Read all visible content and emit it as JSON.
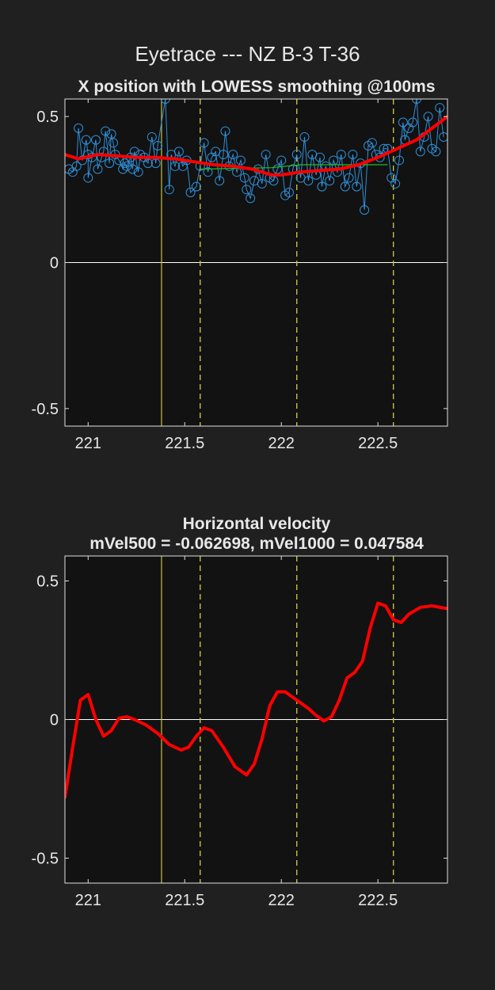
{
  "figure_title": "Eyetrace --- NZ B-3 T-36",
  "chart_data": [
    {
      "type": "line",
      "title": "X position with LOWESS smoothing @100ms",
      "xlim": [
        220.88,
        222.86
      ],
      "ylim": [
        -0.56,
        0.56
      ],
      "xticks": [
        221,
        221.5,
        222,
        222.5
      ],
      "xtick_labels": [
        "221",
        "221.5",
        "222",
        "222.5"
      ],
      "yticks": [
        -0.5,
        0,
        0.5
      ],
      "ytick_labels": [
        "-0.5",
        "0",
        "0.5"
      ],
      "grid": false,
      "zero_line": 0,
      "event_lines": {
        "solid": [
          221.38
        ],
        "dashed": [
          221.58,
          222.08,
          222.58
        ],
        "color": "#c8c040"
      },
      "series": [
        {
          "role": "raw samples",
          "color": "#2f8fd8",
          "marker": "circle",
          "points": [
            [
              220.9,
              0.32
            ],
            [
              220.92,
              0.31
            ],
            [
              220.94,
              0.33
            ],
            [
              220.95,
              0.46
            ],
            [
              220.97,
              0.35
            ],
            [
              220.99,
              0.42
            ],
            [
              221.0,
              0.37
            ],
            [
              221.0,
              0.29
            ],
            [
              221.02,
              0.36
            ],
            [
              221.04,
              0.42
            ],
            [
              221.05,
              0.32
            ],
            [
              221.07,
              0.36
            ],
            [
              221.08,
              0.38
            ],
            [
              221.09,
              0.45
            ],
            [
              221.11,
              0.34
            ],
            [
              221.12,
              0.44
            ],
            [
              221.13,
              0.41
            ],
            [
              221.14,
              0.37
            ],
            [
              221.16,
              0.35
            ],
            [
              221.18,
              0.32
            ],
            [
              221.19,
              0.34
            ],
            [
              221.2,
              0.33
            ],
            [
              221.22,
              0.36
            ],
            [
              221.23,
              0.32
            ],
            [
              221.24,
              0.38
            ],
            [
              221.26,
              0.31
            ],
            [
              221.27,
              0.37
            ],
            [
              221.29,
              0.36
            ],
            [
              221.31,
              0.34
            ],
            [
              221.33,
              0.43
            ],
            [
              221.35,
              0.34
            ],
            [
              221.36,
              0.4
            ],
            [
              221.4,
              0.56
            ],
            [
              221.42,
              0.25
            ],
            [
              221.43,
              0.37
            ],
            [
              221.45,
              0.33
            ],
            [
              221.47,
              0.38
            ],
            [
              221.49,
              0.33
            ],
            [
              221.51,
              0.35
            ],
            [
              221.53,
              0.24
            ],
            [
              221.56,
              0.26
            ],
            [
              221.58,
              0.33
            ],
            [
              221.6,
              0.41
            ],
            [
              221.62,
              0.31
            ],
            [
              221.64,
              0.36
            ],
            [
              221.66,
              0.38
            ],
            [
              221.68,
              0.28
            ],
            [
              221.7,
              0.37
            ],
            [
              221.71,
              0.45
            ],
            [
              221.73,
              0.33
            ],
            [
              221.75,
              0.37
            ],
            [
              221.77,
              0.31
            ],
            [
              221.79,
              0.35
            ],
            [
              221.81,
              0.29
            ],
            [
              221.82,
              0.25
            ],
            [
              221.84,
              0.22
            ],
            [
              221.86,
              0.28
            ],
            [
              221.88,
              0.32
            ],
            [
              221.9,
              0.27
            ],
            [
              221.92,
              0.37
            ],
            [
              221.94,
              0.29
            ],
            [
              221.96,
              0.28
            ],
            [
              221.98,
              0.32
            ],
            [
              222.0,
              0.35
            ],
            [
              222.02,
              0.23
            ],
            [
              222.04,
              0.24
            ],
            [
              222.06,
              0.32
            ],
            [
              222.08,
              0.37
            ],
            [
              222.1,
              0.29
            ],
            [
              222.12,
              0.43
            ],
            [
              222.14,
              0.28
            ],
            [
              222.16,
              0.37
            ],
            [
              222.18,
              0.3
            ],
            [
              222.2,
              0.36
            ],
            [
              222.21,
              0.26
            ],
            [
              222.23,
              0.33
            ],
            [
              222.25,
              0.28
            ],
            [
              222.27,
              0.35
            ],
            [
              222.29,
              0.31
            ],
            [
              222.31,
              0.37
            ],
            [
              222.33,
              0.26
            ],
            [
              222.35,
              0.29
            ],
            [
              222.37,
              0.37
            ],
            [
              222.39,
              0.26
            ],
            [
              222.41,
              0.34
            ],
            [
              222.43,
              0.18
            ],
            [
              222.45,
              0.4
            ],
            [
              222.47,
              0.41
            ],
            [
              222.49,
              0.37
            ],
            [
              222.51,
              0.36
            ],
            [
              222.53,
              0.39
            ],
            [
              222.55,
              0.39
            ],
            [
              222.57,
              0.29
            ],
            [
              222.59,
              0.27
            ],
            [
              222.61,
              0.35
            ],
            [
              222.63,
              0.48
            ],
            [
              222.64,
              0.42
            ],
            [
              222.66,
              0.46
            ],
            [
              222.68,
              0.48
            ],
            [
              222.7,
              0.56
            ],
            [
              222.72,
              0.38
            ],
            [
              222.74,
              0.43
            ],
            [
              222.76,
              0.5
            ],
            [
              222.78,
              0.39
            ],
            [
              222.8,
              0.38
            ],
            [
              222.82,
              0.53
            ],
            [
              222.84,
              0.43
            ]
          ]
        },
        {
          "role": "fixation segment",
          "color": "#20c020",
          "points": [
            [
              221.58,
              0.32
            ],
            [
              221.95,
              0.325
            ],
            [
              222.1,
              0.335
            ],
            [
              222.55,
              0.335
            ]
          ]
        },
        {
          "role": "LOWESS smoothed",
          "color": "#ff0000",
          "points": [
            [
              220.88,
              0.37
            ],
            [
              220.95,
              0.355
            ],
            [
              221.05,
              0.37
            ],
            [
              221.15,
              0.365
            ],
            [
              221.25,
              0.36
            ],
            [
              221.35,
              0.36
            ],
            [
              221.45,
              0.355
            ],
            [
              221.55,
              0.345
            ],
            [
              221.65,
              0.335
            ],
            [
              221.75,
              0.33
            ],
            [
              221.85,
              0.32
            ],
            [
              221.95,
              0.3
            ],
            [
              222.0,
              0.3
            ],
            [
              222.1,
              0.31
            ],
            [
              222.2,
              0.315
            ],
            [
              222.3,
              0.32
            ],
            [
              222.4,
              0.335
            ],
            [
              222.5,
              0.36
            ],
            [
              222.6,
              0.39
            ],
            [
              222.7,
              0.42
            ],
            [
              222.78,
              0.46
            ],
            [
              222.86,
              0.5
            ]
          ]
        }
      ]
    },
    {
      "type": "line",
      "title": "Horizontal velocity",
      "subtitle": "mVel500 = -0.062698, mVel1000 = 0.047584",
      "xlim": [
        220.88,
        222.86
      ],
      "ylim": [
        -0.59,
        0.59
      ],
      "xticks": [
        221,
        221.5,
        222,
        222.5
      ],
      "xtick_labels": [
        "221",
        "221.5",
        "222",
        "222.5"
      ],
      "yticks": [
        -0.5,
        0,
        0.5
      ],
      "ytick_labels": [
        "-0.5",
        "0",
        "0.5"
      ],
      "grid": false,
      "zero_line": 0,
      "event_lines": {
        "solid": [
          221.38
        ],
        "dashed": [
          221.58,
          222.08,
          222.58
        ],
        "color": "#c8c040"
      },
      "series": [
        {
          "role": "velocity",
          "color": "#ff0000",
          "points": [
            [
              220.88,
              -0.28
            ],
            [
              220.92,
              -0.1
            ],
            [
              220.96,
              0.07
            ],
            [
              221.0,
              0.09
            ],
            [
              221.04,
              0.0
            ],
            [
              221.08,
              -0.06
            ],
            [
              221.12,
              -0.04
            ],
            [
              221.16,
              0.005
            ],
            [
              221.2,
              0.01
            ],
            [
              221.24,
              0.0
            ],
            [
              221.3,
              -0.02
            ],
            [
              221.36,
              -0.05
            ],
            [
              221.42,
              -0.09
            ],
            [
              221.48,
              -0.11
            ],
            [
              221.52,
              -0.1
            ],
            [
              221.56,
              -0.06
            ],
            [
              221.6,
              -0.03
            ],
            [
              221.64,
              -0.04
            ],
            [
              221.7,
              -0.1
            ],
            [
              221.76,
              -0.17
            ],
            [
              221.82,
              -0.2
            ],
            [
              221.86,
              -0.16
            ],
            [
              221.9,
              -0.07
            ],
            [
              221.94,
              0.05
            ],
            [
              221.98,
              0.1
            ],
            [
              222.02,
              0.1
            ],
            [
              222.08,
              0.07
            ],
            [
              222.14,
              0.04
            ],
            [
              222.18,
              0.015
            ],
            [
              222.22,
              -0.005
            ],
            [
              222.26,
              0.01
            ],
            [
              222.3,
              0.07
            ],
            [
              222.34,
              0.15
            ],
            [
              222.38,
              0.17
            ],
            [
              222.42,
              0.21
            ],
            [
              222.46,
              0.33
            ],
            [
              222.5,
              0.42
            ],
            [
              222.54,
              0.41
            ],
            [
              222.58,
              0.36
            ],
            [
              222.62,
              0.35
            ],
            [
              222.66,
              0.38
            ],
            [
              222.72,
              0.405
            ],
            [
              222.78,
              0.41
            ],
            [
              222.86,
              0.4
            ]
          ]
        }
      ]
    }
  ]
}
